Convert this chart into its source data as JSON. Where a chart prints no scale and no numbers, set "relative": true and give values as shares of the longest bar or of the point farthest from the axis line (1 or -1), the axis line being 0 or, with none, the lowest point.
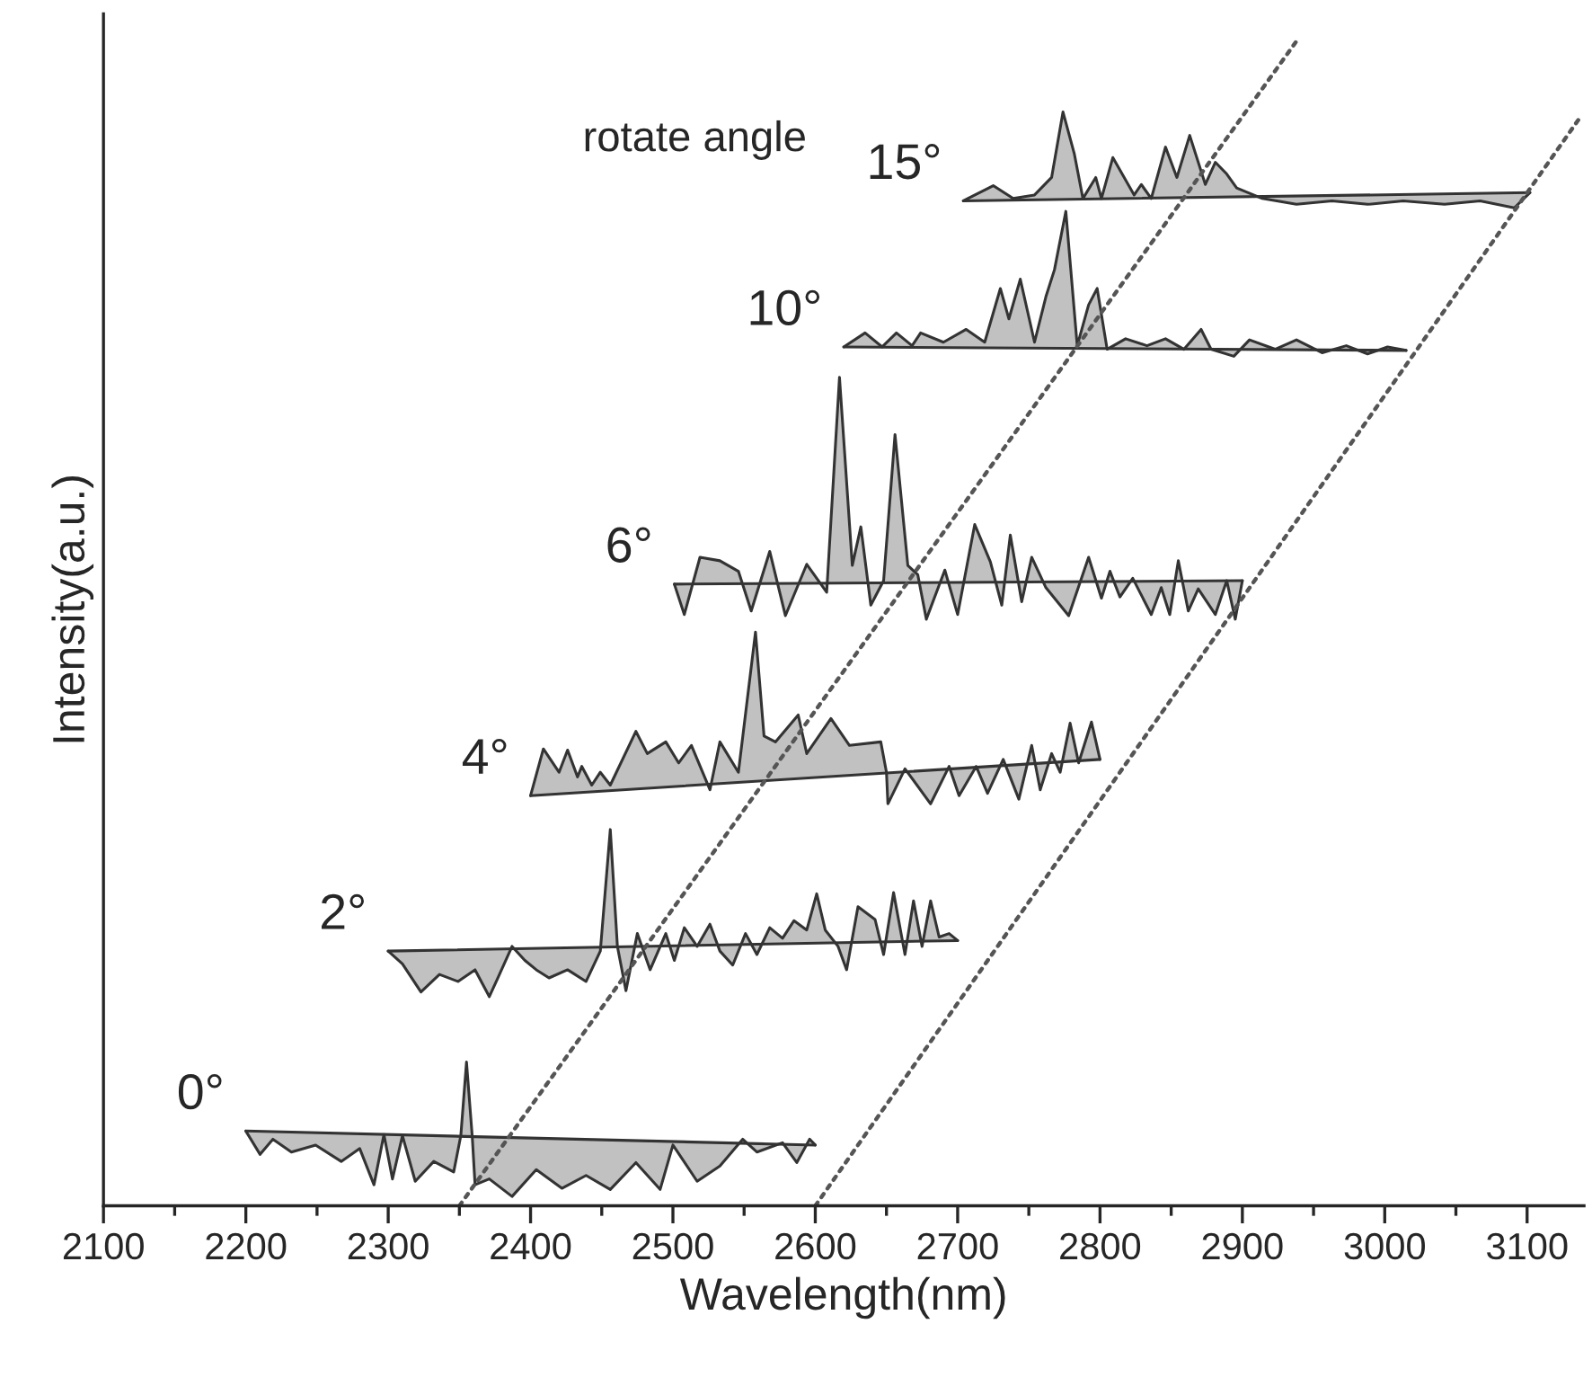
{
  "chart_data": {
    "type": "area",
    "relative": true,
    "xlabel": "Wavelength(nm)",
    "ylabel": "Intensity(a.u.)",
    "xlim": [
      2100,
      3140
    ],
    "xticks": [
      2100,
      2200,
      2300,
      2400,
      2500,
      2600,
      2700,
      2800,
      2900,
      3000,
      3100
    ],
    "grid": false,
    "legend": false,
    "annotations": [
      "rotate angle"
    ],
    "series": [
      {
        "name": "0°",
        "color": "#333333",
        "x": [
          2200,
          2210,
          2219,
          2232,
          2249,
          2267,
          2280,
          2290,
          2297,
          2303,
          2310,
          2319,
          2332,
          2346,
          2351,
          2355,
          2359,
          2361,
          2371,
          2387,
          2404,
          2422,
          2439,
          2456,
          2474,
          2491,
          2500,
          2517,
          2533,
          2549,
          2559,
          2577,
          2587,
          2596,
          2600
        ],
        "values": [
          0.064,
          0.044,
          0.057,
          0.046,
          0.052,
          0.038,
          0.049,
          0.018,
          0.061,
          0.023,
          0.06,
          0.021,
          0.038,
          0.029,
          0.06,
          0.123,
          0.06,
          0.018,
          0.023,
          0.008,
          0.031,
          0.015,
          0.026,
          0.014,
          0.037,
          0.014,
          0.052,
          0.021,
          0.034,
          0.057,
          0.046,
          0.054,
          0.037,
          0.057,
          0.052
        ]
      },
      {
        "name": "2°",
        "color": "#333333",
        "x": [
          2300,
          2310,
          2323,
          2336,
          2349,
          2361,
          2371,
          2377,
          2387,
          2396,
          2404,
          2413,
          2426,
          2439,
          2449,
          2456,
          2461,
          2467,
          2475,
          2484,
          2495,
          2501,
          2508,
          2517,
          2526,
          2533,
          2542,
          2551,
          2559,
          2568,
          2577,
          2585,
          2594,
          2601,
          2607,
          2616,
          2622,
          2630,
          2642,
          2648,
          2655,
          2663,
          2669,
          2675,
          2681,
          2687,
          2694,
          2700
        ],
        "values": [
          0.218,
          0.207,
          0.183,
          0.198,
          0.192,
          0.202,
          0.179,
          0.195,
          0.222,
          0.21,
          0.202,
          0.195,
          0.202,
          0.192,
          0.218,
          0.322,
          0.222,
          0.184,
          0.233,
          0.202,
          0.233,
          0.21,
          0.238,
          0.222,
          0.241,
          0.218,
          0.206,
          0.233,
          0.215,
          0.238,
          0.229,
          0.244,
          0.236,
          0.267,
          0.236,
          0.222,
          0.202,
          0.256,
          0.245,
          0.215,
          0.268,
          0.215,
          0.261,
          0.222,
          0.261,
          0.23,
          0.233,
          0.227
        ]
      },
      {
        "name": "4°",
        "color": "#333333",
        "x": [
          2400,
          2409,
          2420,
          2426,
          2433,
          2436,
          2443,
          2449,
          2456,
          2474,
          2482,
          2495,
          2504,
          2513,
          2526,
          2533,
          2546,
          2558,
          2564,
          2572,
          2588,
          2594,
          2611,
          2624,
          2646,
          2650,
          2651,
          2663,
          2681,
          2694,
          2701,
          2713,
          2721,
          2732,
          2743,
          2752,
          2758,
          2766,
          2772,
          2779,
          2785,
          2794,
          2800
        ],
        "values": [
          0.351,
          0.391,
          0.371,
          0.39,
          0.367,
          0.376,
          0.36,
          0.371,
          0.36,
          0.406,
          0.387,
          0.397,
          0.379,
          0.394,
          0.356,
          0.397,
          0.371,
          0.491,
          0.402,
          0.397,
          0.42,
          0.387,
          0.417,
          0.394,
          0.397,
          0.371,
          0.344,
          0.374,
          0.344,
          0.376,
          0.351,
          0.376,
          0.353,
          0.382,
          0.348,
          0.394,
          0.356,
          0.387,
          0.371,
          0.413,
          0.379,
          0.414,
          0.382
        ]
      },
      {
        "name": "6°",
        "color": "#333333",
        "x": [
          2501,
          2508,
          2519,
          2533,
          2546,
          2555,
          2568,
          2579,
          2594,
          2608,
          2617,
          2626,
          2632,
          2639,
          2648,
          2656,
          2665,
          2672,
          2678,
          2691,
          2700,
          2712,
          2723,
          2731,
          2737,
          2745,
          2752,
          2762,
          2778,
          2792,
          2801,
          2807,
          2814,
          2823,
          2836,
          2843,
          2849,
          2855,
          2862,
          2869,
          2881,
          2889,
          2895,
          2900
        ],
        "values": [
          0.532,
          0.506,
          0.555,
          0.552,
          0.543,
          0.509,
          0.56,
          0.505,
          0.549,
          0.525,
          0.709,
          0.548,
          0.581,
          0.514,
          0.535,
          0.66,
          0.548,
          0.54,
          0.502,
          0.544,
          0.506,
          0.583,
          0.551,
          0.514,
          0.574,
          0.517,
          0.555,
          0.529,
          0.505,
          0.555,
          0.52,
          0.543,
          0.521,
          0.537,
          0.506,
          0.529,
          0.506,
          0.552,
          0.509,
          0.528,
          0.506,
          0.535,
          0.502,
          0.535
        ]
      },
      {
        "name": "10°",
        "color": "#333333",
        "x": [
          2620,
          2635,
          2647,
          2657,
          2668,
          2674,
          2690,
          2706,
          2719,
          2730,
          2736,
          2744,
          2754,
          2762,
          2768,
          2776,
          2784,
          2792,
          2798,
          2805,
          2818,
          2833,
          2846,
          2859,
          2871,
          2878,
          2894,
          2905,
          2923,
          2938,
          2956,
          2973,
          2988,
          3002,
          3015
        ],
        "values": [
          0.735,
          0.747,
          0.735,
          0.747,
          0.736,
          0.747,
          0.739,
          0.75,
          0.739,
          0.785,
          0.759,
          0.793,
          0.739,
          0.778,
          0.801,
          0.851,
          0.736,
          0.771,
          0.785,
          0.733,
          0.742,
          0.736,
          0.742,
          0.733,
          0.75,
          0.733,
          0.727,
          0.741,
          0.733,
          0.741,
          0.73,
          0.736,
          0.729,
          0.735,
          0.732
        ]
      },
      {
        "name": "15°",
        "color": "#333333",
        "x": [
          2704,
          2725,
          2739,
          2754,
          2766,
          2774,
          2782,
          2788,
          2797,
          2801,
          2809,
          2824,
          2829,
          2836,
          2846,
          2854,
          2863,
          2874,
          2881,
          2889,
          2896,
          2914,
          2938,
          2963,
          2988,
          3013,
          3042,
          3067,
          3091,
          3102
        ],
        "values": [
          0.86,
          0.873,
          0.862,
          0.865,
          0.88,
          0.936,
          0.9,
          0.862,
          0.88,
          0.862,
          0.897,
          0.865,
          0.874,
          0.862,
          0.906,
          0.88,
          0.916,
          0.874,
          0.893,
          0.883,
          0.871,
          0.862,
          0.857,
          0.86,
          0.857,
          0.86,
          0.857,
          0.86,
          0.854,
          0.867
        ]
      },
      {
        "type": "line",
        "line_style": "dotted",
        "color": "#555555",
        "x": [
          2350,
          2940
        ],
        "values": [
          0,
          1
        ]
      },
      {
        "type": "line",
        "line_style": "dotted",
        "color": "#555555",
        "x": [
          2600,
          3137
        ],
        "values": [
          0,
          0.931
        ]
      }
    ]
  }
}
